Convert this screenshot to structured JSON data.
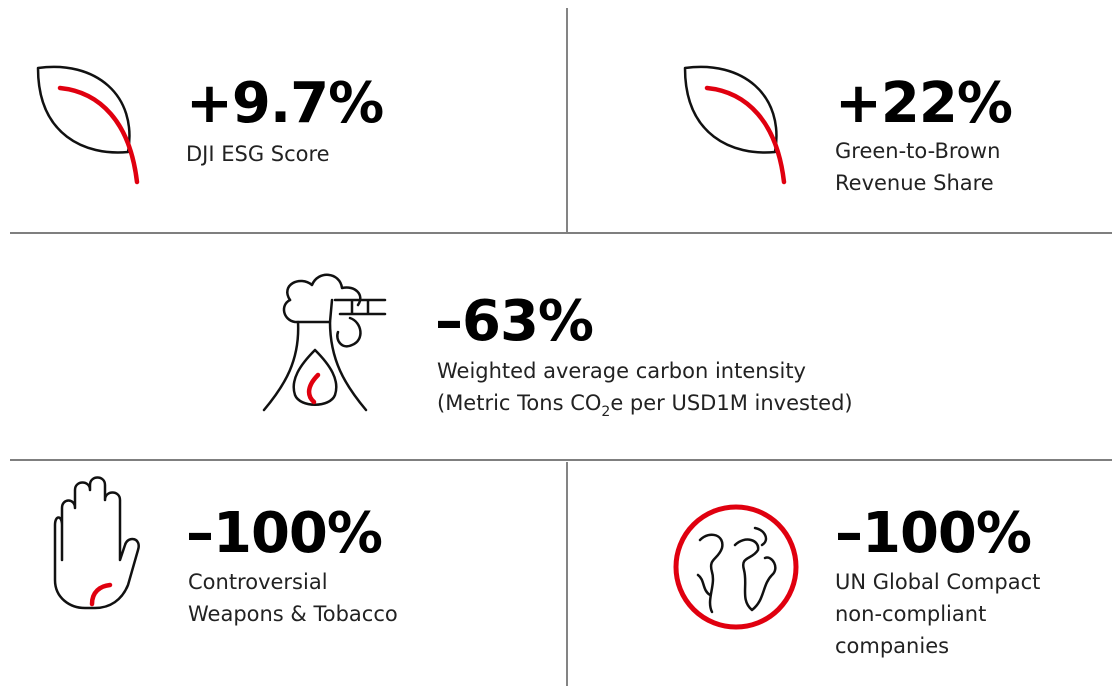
{
  "stats": [
    {
      "value": "+9.7%",
      "label": [
        "DJI ESG Score"
      ]
    },
    {
      "value": "+22%",
      "label": [
        "Green-to-Brown",
        "Revenue Share"
      ]
    },
    {
      "value": "–63%",
      "label": [
        "Weighted average carbon intensity",
        [
          "(Metric Tons CO",
          "2",
          "e per USD1M invested)"
        ]
      ]
    },
    {
      "value": "–100%",
      "label": [
        "Controversial",
        "Weapons & Tobacco"
      ]
    },
    {
      "value": "–100%",
      "label": [
        "UN Global Compact",
        "non-compliant",
        "companies"
      ]
    }
  ]
}
